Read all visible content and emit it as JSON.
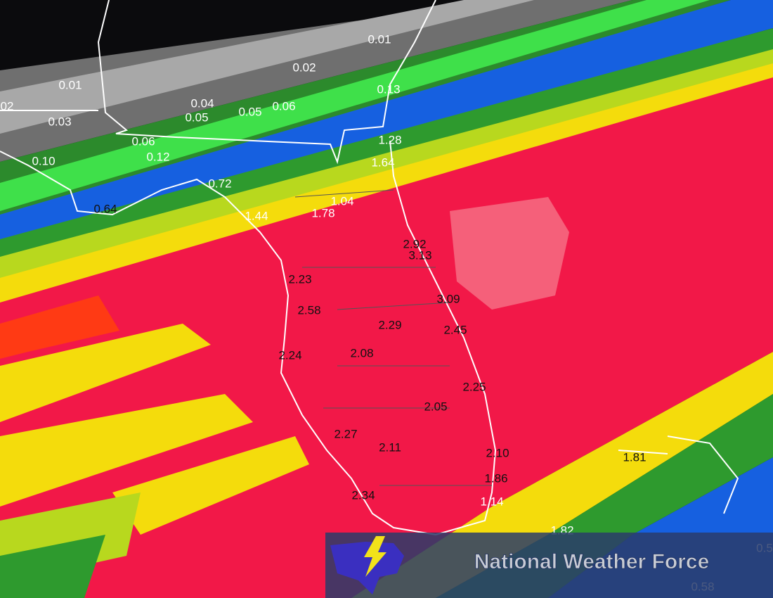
{
  "map": {
    "labels": [
      "0.01",
      "0.02",
      "0.01",
      "02",
      "0.03",
      "0.04",
      "0.05",
      "0.05",
      "0.06",
      "0.06",
      "0.12",
      "0.10",
      "0.13",
      "1.28",
      "1.64",
      "0.72",
      "0.64",
      "1.04",
      "1.44",
      "1.78",
      "2.92",
      "3.13",
      "2.23",
      "3.09",
      "2.58",
      "2.29",
      "2.45",
      "2.24",
      "2.08",
      "2.25",
      "2.05",
      "2.27",
      "2.11",
      "2.10",
      "1.81",
      "1.86",
      "2.34",
      "1.14",
      "1.82",
      "0.5",
      "0.58"
    ]
  },
  "banner": {
    "title": "National Weather Force"
  }
}
